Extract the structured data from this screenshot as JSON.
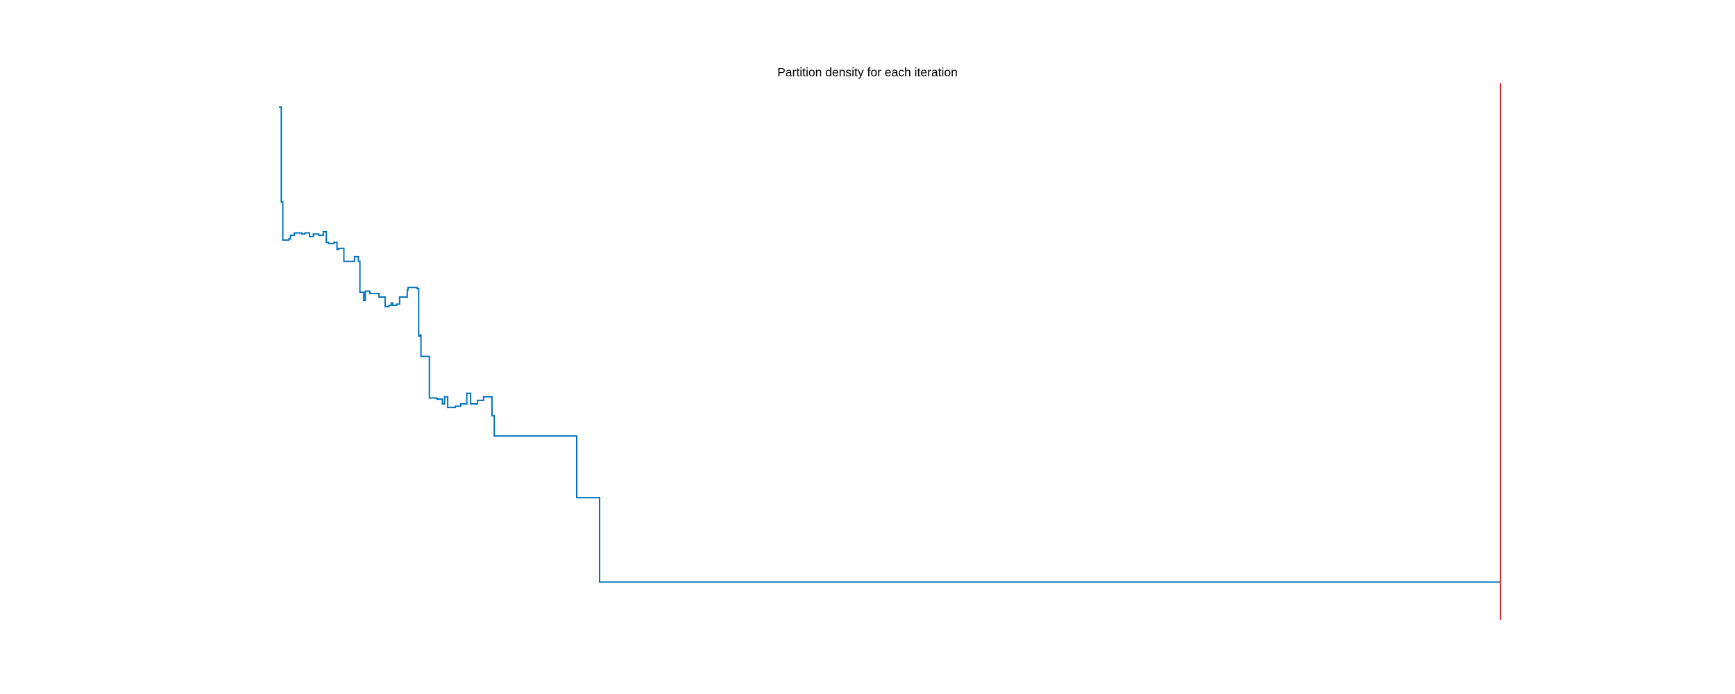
{
  "chart_data": {
    "type": "line",
    "title": "Partition density for each iteration",
    "xlabel": "",
    "ylabel": "",
    "axes_visible": false,
    "grid": false,
    "xlim": [
      0,
      1600
    ],
    "ylim": [
      0,
      0.45
    ],
    "series": [
      {
        "color": "#0072BD",
        "step": true,
        "points": [
          [
            0,
            0.43
          ],
          [
            3,
            0.35
          ],
          [
            5,
            0.318
          ],
          [
            13,
            0.319
          ],
          [
            15,
            0.322
          ],
          [
            20,
            0.324
          ],
          [
            30,
            0.323
          ],
          [
            34,
            0.324
          ],
          [
            40,
            0.321
          ],
          [
            45,
            0.323
          ],
          [
            52,
            0.322
          ],
          [
            58,
            0.325
          ],
          [
            62,
            0.316
          ],
          [
            65,
            0.315
          ],
          [
            72,
            0.316
          ],
          [
            76,
            0.31
          ],
          [
            78,
            0.311
          ],
          [
            85,
            0.3
          ],
          [
            95,
            0.3
          ],
          [
            99,
            0.304
          ],
          [
            104,
            0.3
          ],
          [
            106,
            0.274
          ],
          [
            111,
            0.267
          ],
          [
            113,
            0.275
          ],
          [
            119,
            0.273
          ],
          [
            131,
            0.27
          ],
          [
            139,
            0.262
          ],
          [
            144,
            0.263
          ],
          [
            147,
            0.265
          ],
          [
            149,
            0.263
          ],
          [
            154,
            0.264
          ],
          [
            158,
            0.27
          ],
          [
            168,
            0.276
          ],
          [
            169,
            0.278
          ],
          [
            181,
            0.277
          ],
          [
            183,
            0.237
          ],
          [
            185,
            0.238
          ],
          [
            186,
            0.22
          ],
          [
            197,
            0.185
          ],
          [
            207,
            0.184
          ],
          [
            214,
            0.18
          ],
          [
            217,
            0.186
          ],
          [
            221,
            0.177
          ],
          [
            231,
            0.178
          ],
          [
            238,
            0.18
          ],
          [
            246,
            0.189
          ],
          [
            251,
            0.18
          ],
          [
            260,
            0.183
          ],
          [
            268,
            0.186
          ],
          [
            279,
            0.17
          ],
          [
            282,
            0.153
          ],
          [
            390,
            0.101
          ],
          [
            420,
            0.03
          ],
          [
            1600,
            0.03
          ]
        ]
      }
    ],
    "reference_lines": [
      {
        "orientation": "vertical",
        "x": 1600,
        "color": "#D62728"
      }
    ]
  }
}
